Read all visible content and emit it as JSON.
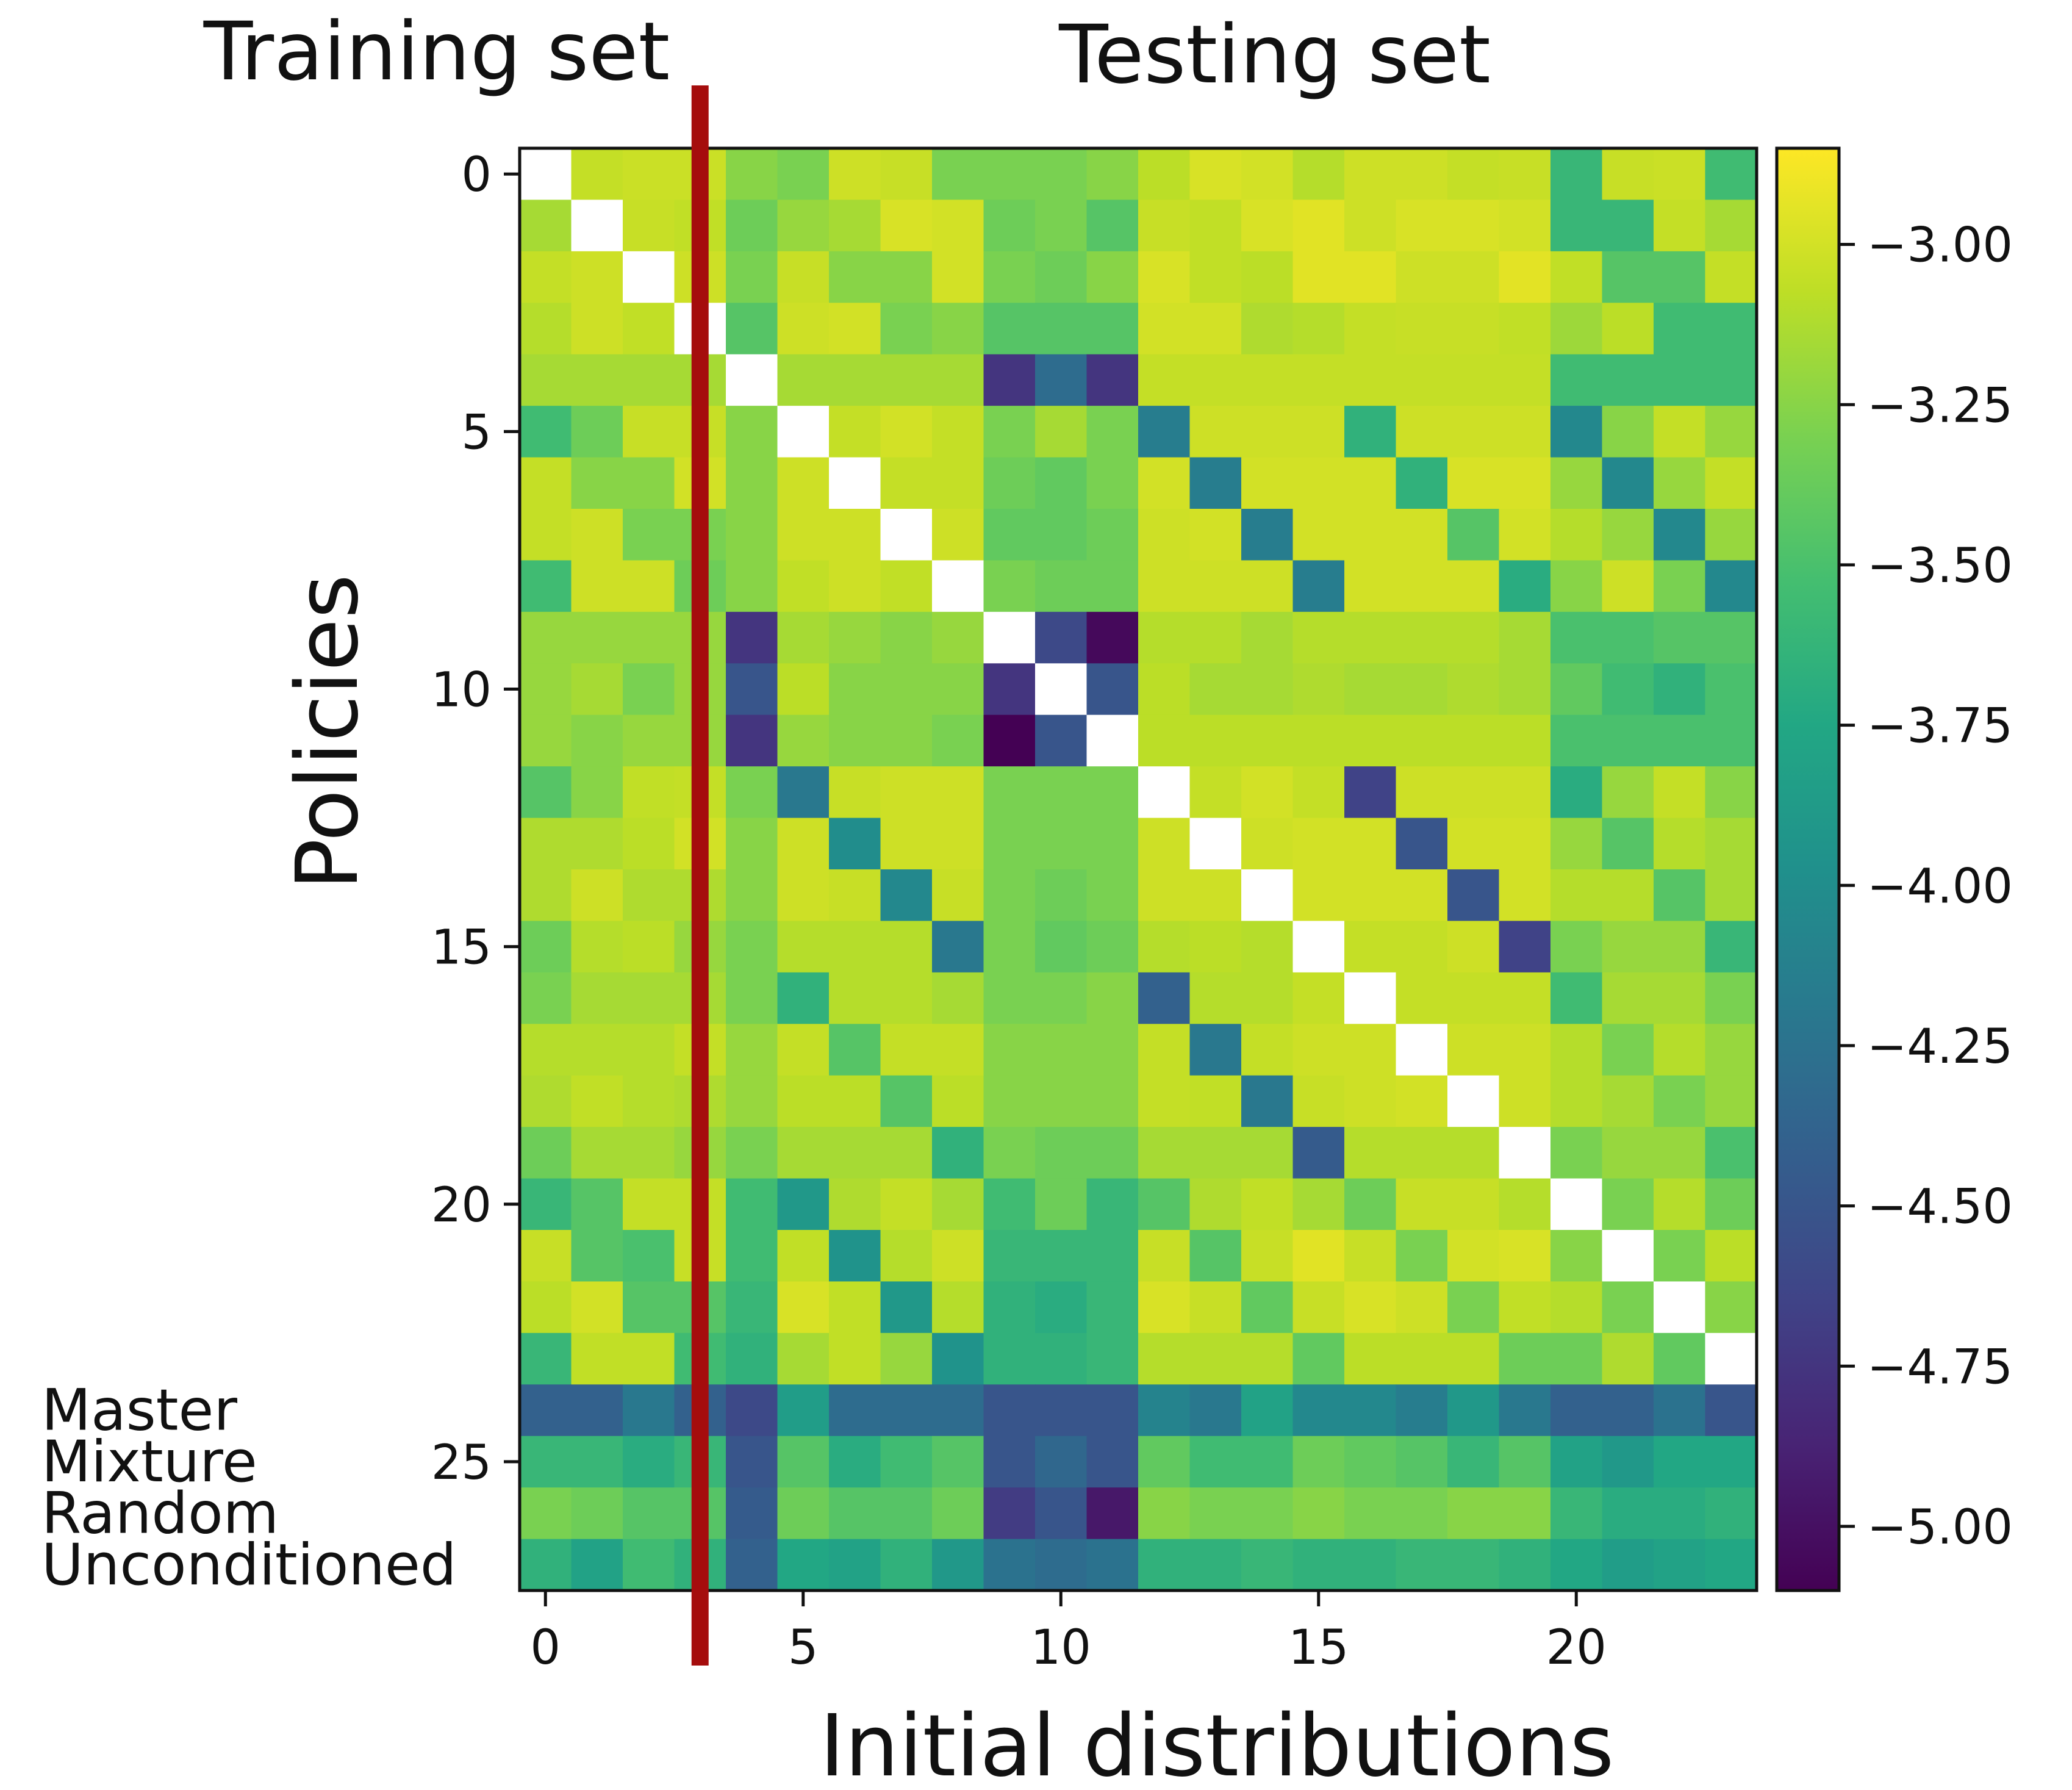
{
  "chart_data": {
    "type": "heatmap",
    "title": "",
    "xlabel": "Initial distributions",
    "ylabel": "Policies",
    "section_titles": {
      "left": "Training set",
      "right": "Testing set"
    },
    "split_after_column": 3,
    "x_tick_values": [
      0,
      5,
      10,
      15,
      20
    ],
    "x_tick_labels": [
      "0",
      "5",
      "10",
      "15",
      "20"
    ],
    "y_tick_values": [
      0,
      5,
      10,
      15,
      20,
      25
    ],
    "y_tick_labels": [
      "0",
      "5",
      "10",
      "15",
      "20",
      "25"
    ],
    "named_rows": [
      {
        "row": 24,
        "label": "Master"
      },
      {
        "row": 25,
        "label": "Mixture"
      },
      {
        "row": 26,
        "label": "Random"
      },
      {
        "row": 27,
        "label": "Unconditioned"
      }
    ],
    "n_rows": 28,
    "n_cols": 24,
    "colorbar": {
      "min": -5.1,
      "max": -2.85,
      "ticks": [
        -3.0,
        -3.25,
        -3.5,
        -3.75,
        -4.0,
        -4.25,
        -4.5,
        -4.75,
        -5.0
      ],
      "tick_labels": [
        "−3.00",
        "−3.25",
        "−3.50",
        "−3.75",
        "−4.00",
        "−4.25",
        "−4.50",
        "−4.75",
        "−5.00"
      ]
    },
    "colors": {
      "split_line": "#a50d0d",
      "missing": "#ffffff"
    },
    "values": [
      [
        null,
        -3.05,
        -3.03,
        -3.03,
        -3.25,
        -3.3,
        -3.02,
        -3.04,
        -3.3,
        -3.3,
        -3.3,
        -3.25,
        -3.08,
        -2.98,
        -3.0,
        -3.1,
        -3.02,
        -3.02,
        -3.05,
        -3.04,
        -3.6,
        -3.04,
        -3.03,
        -3.55
      ],
      [
        -3.15,
        null,
        -3.04,
        -3.06,
        -3.35,
        -3.2,
        -3.15,
        -2.98,
        -3.0,
        -3.35,
        -3.3,
        -3.45,
        -3.04,
        -3.06,
        -2.98,
        -2.95,
        -3.02,
        -2.98,
        -2.98,
        -3.0,
        -3.6,
        -3.6,
        -3.05,
        -3.15
      ],
      [
        -3.05,
        -3.02,
        null,
        -3.02,
        -3.3,
        -3.04,
        -3.25,
        -3.25,
        -3.0,
        -3.3,
        -3.35,
        -3.25,
        -2.98,
        -3.06,
        -3.08,
        -2.95,
        -2.95,
        -3.02,
        -3.02,
        -2.94,
        -3.06,
        -3.45,
        -3.45,
        -3.05
      ],
      [
        -3.1,
        -3.02,
        -3.06,
        null,
        -3.45,
        -3.02,
        -3.0,
        -3.3,
        -3.25,
        -3.45,
        -3.45,
        -3.45,
        -3.0,
        -3.0,
        -3.12,
        -3.1,
        -3.05,
        -3.04,
        -3.04,
        -3.06,
        -3.18,
        -3.08,
        -3.55,
        -3.55
      ],
      [
        -3.15,
        -3.15,
        -3.15,
        -3.15,
        null,
        -3.15,
        -3.15,
        -3.15,
        -3.15,
        -4.75,
        -4.3,
        -4.75,
        -3.05,
        -3.05,
        -3.05,
        -3.05,
        -3.05,
        -3.05,
        -3.05,
        -3.05,
        -3.55,
        -3.55,
        -3.55,
        -3.55
      ],
      [
        -3.55,
        -3.35,
        -3.04,
        -3.04,
        -3.25,
        null,
        -3.05,
        -3.0,
        -3.05,
        -3.3,
        -3.15,
        -3.3,
        -4.15,
        -3.02,
        -3.02,
        -3.02,
        -3.65,
        -3.02,
        -3.02,
        -3.02,
        -4.05,
        -3.25,
        -3.05,
        -3.2
      ],
      [
        -3.05,
        -3.25,
        -3.25,
        -3.0,
        -3.25,
        -3.02,
        null,
        -3.05,
        -3.05,
        -3.35,
        -3.4,
        -3.3,
        -3.0,
        -4.15,
        -3.0,
        -3.0,
        -3.0,
        -3.65,
        -2.98,
        -2.98,
        -3.2,
        -4.05,
        -3.2,
        -3.05
      ],
      [
        -3.05,
        -3.02,
        -3.3,
        -3.3,
        -3.25,
        -3.02,
        -3.02,
        null,
        -3.02,
        -3.4,
        -3.4,
        -3.35,
        -3.02,
        -3.0,
        -4.15,
        -3.0,
        -3.0,
        -3.0,
        -3.45,
        -3.0,
        -3.1,
        -3.2,
        -4.05,
        -3.2
      ],
      [
        -3.55,
        -3.02,
        -3.02,
        -3.35,
        -3.25,
        -3.06,
        -3.02,
        -3.06,
        null,
        -3.3,
        -3.35,
        -3.35,
        -3.02,
        -3.02,
        -3.02,
        -4.15,
        -3.0,
        -3.0,
        -3.0,
        -3.7,
        -3.25,
        -3.02,
        -3.3,
        -4.05
      ],
      [
        -3.2,
        -3.2,
        -3.2,
        -3.2,
        -4.75,
        -3.15,
        -3.2,
        -3.25,
        -3.2,
        null,
        -4.6,
        -5.05,
        -3.1,
        -3.1,
        -3.15,
        -3.1,
        -3.1,
        -3.1,
        -3.1,
        -3.15,
        -3.5,
        -3.5,
        -3.45,
        -3.45
      ],
      [
        -3.2,
        -3.15,
        -3.3,
        -3.2,
        -4.5,
        -3.08,
        -3.25,
        -3.25,
        -3.25,
        -4.75,
        null,
        -4.5,
        -3.08,
        -3.15,
        -3.15,
        -3.12,
        -3.15,
        -3.15,
        -3.12,
        -3.15,
        -3.4,
        -3.55,
        -3.65,
        -3.5
      ],
      [
        -3.2,
        -3.25,
        -3.2,
        -3.2,
        -4.75,
        -3.2,
        -3.25,
        -3.25,
        -3.3,
        -5.1,
        -4.5,
        null,
        -3.08,
        -3.08,
        -3.08,
        -3.08,
        -3.08,
        -3.08,
        -3.08,
        -3.08,
        -3.5,
        -3.5,
        -3.5,
        -3.5
      ],
      [
        -3.45,
        -3.25,
        -3.06,
        -3.05,
        -3.3,
        -4.2,
        -3.04,
        -3.02,
        -3.02,
        -3.3,
        -3.3,
        -3.3,
        null,
        -3.05,
        -3.0,
        -3.05,
        -4.65,
        -3.02,
        -3.02,
        -3.02,
        -3.7,
        -3.2,
        -3.05,
        -3.25
      ],
      [
        -3.12,
        -3.12,
        -3.08,
        -3.0,
        -3.25,
        -3.02,
        -4.0,
        -3.02,
        -3.02,
        -3.3,
        -3.3,
        -3.3,
        -3.02,
        null,
        -3.02,
        -3.0,
        -3.0,
        -4.5,
        -3.0,
        -3.0,
        -3.2,
        -3.45,
        -3.1,
        -3.15
      ],
      [
        -3.12,
        -3.02,
        -3.12,
        -3.12,
        -3.25,
        -3.02,
        -3.04,
        -4.05,
        -3.04,
        -3.3,
        -3.35,
        -3.3,
        -3.02,
        -3.02,
        null,
        -3.0,
        -3.0,
        -3.0,
        -4.5,
        -3.0,
        -3.1,
        -3.1,
        -3.45,
        -3.15
      ],
      [
        -3.35,
        -3.1,
        -3.08,
        -3.2,
        -3.3,
        -3.1,
        -3.1,
        -3.1,
        -4.2,
        -3.3,
        -3.4,
        -3.35,
        -3.1,
        -3.08,
        -3.1,
        null,
        -3.05,
        -3.05,
        -3.02,
        -4.65,
        -3.3,
        -3.2,
        -3.2,
        -3.6
      ],
      [
        -3.3,
        -3.15,
        -3.15,
        -3.15,
        -3.3,
        -3.65,
        -3.1,
        -3.1,
        -3.15,
        -3.3,
        -3.3,
        -3.25,
        -4.4,
        -3.1,
        -3.1,
        -3.05,
        null,
        -3.05,
        -3.05,
        -3.05,
        -3.55,
        -3.15,
        -3.15,
        -3.3
      ],
      [
        -3.1,
        -3.1,
        -3.1,
        -3.05,
        -3.2,
        -3.05,
        -3.45,
        -3.05,
        -3.05,
        -3.25,
        -3.25,
        -3.25,
        -3.05,
        -4.2,
        -3.05,
        -3.02,
        -3.02,
        null,
        -3.02,
        -3.02,
        -3.1,
        -3.3,
        -3.1,
        -3.2
      ],
      [
        -3.12,
        -3.06,
        -3.1,
        -3.12,
        -3.2,
        -3.08,
        -3.08,
        -3.45,
        -3.08,
        -3.25,
        -3.25,
        -3.25,
        -3.05,
        -3.06,
        -4.2,
        -3.04,
        -3.02,
        -3.0,
        null,
        -3.02,
        -3.1,
        -3.15,
        -3.3,
        -3.2
      ],
      [
        -3.35,
        -3.15,
        -3.15,
        -3.2,
        -3.3,
        -3.15,
        -3.15,
        -3.15,
        -3.65,
        -3.3,
        -3.35,
        -3.35,
        -3.15,
        -3.15,
        -3.15,
        -4.45,
        -3.1,
        -3.1,
        -3.1,
        null,
        -3.3,
        -3.2,
        -3.2,
        -3.5
      ],
      [
        -3.6,
        -3.45,
        -3.05,
        -3.05,
        -3.55,
        -3.9,
        -3.12,
        -3.05,
        -3.15,
        -3.55,
        -3.35,
        -3.6,
        -3.45,
        -3.12,
        -3.06,
        -3.15,
        -3.35,
        -3.04,
        -3.04,
        -3.1,
        null,
        -3.3,
        -3.1,
        -3.35
      ],
      [
        -3.04,
        -3.45,
        -3.5,
        -3.04,
        -3.55,
        -3.06,
        -3.95,
        -3.1,
        -3.02,
        -3.6,
        -3.6,
        -3.6,
        -3.04,
        -3.45,
        -3.04,
        -2.95,
        -3.04,
        -3.3,
        -3.0,
        -2.98,
        -3.25,
        null,
        -3.3,
        -3.08
      ],
      [
        -3.08,
        -3.0,
        -3.45,
        -3.45,
        -3.6,
        -2.98,
        -3.06,
        -3.9,
        -3.1,
        -3.65,
        -3.7,
        -3.6,
        -2.98,
        -3.04,
        -3.4,
        -3.04,
        -2.98,
        -3.02,
        -3.3,
        -3.06,
        -3.1,
        -3.3,
        null,
        -3.25
      ],
      [
        -3.6,
        -3.06,
        -3.06,
        -3.55,
        -3.65,
        -3.15,
        -3.06,
        -3.2,
        -3.95,
        -3.65,
        -3.65,
        -3.6,
        -3.1,
        -3.1,
        -3.1,
        -3.4,
        -3.08,
        -3.08,
        -3.08,
        -3.35,
        -3.35,
        -3.12,
        -3.4,
        null
      ],
      [
        -4.4,
        -4.4,
        -4.2,
        -4.4,
        -4.6,
        -3.85,
        -4.3,
        -4.3,
        -4.3,
        -4.5,
        -4.5,
        -4.5,
        -4.1,
        -4.2,
        -3.8,
        -4.05,
        -4.05,
        -4.15,
        -3.9,
        -4.2,
        -4.4,
        -4.4,
        -4.25,
        -4.5
      ],
      [
        -3.6,
        -3.6,
        -3.7,
        -3.6,
        -4.5,
        -3.45,
        -3.7,
        -3.55,
        -3.45,
        -4.5,
        -4.35,
        -4.5,
        -3.4,
        -3.55,
        -3.55,
        -3.35,
        -3.4,
        -3.45,
        -3.6,
        -3.45,
        -3.8,
        -3.9,
        -3.75,
        -3.75
      ],
      [
        -3.3,
        -3.35,
        -3.45,
        -3.45,
        -4.45,
        -3.35,
        -3.45,
        -3.45,
        -3.35,
        -4.7,
        -4.5,
        -4.95,
        -3.25,
        -3.3,
        -3.3,
        -3.25,
        -3.3,
        -3.3,
        -3.25,
        -3.25,
        -3.6,
        -3.7,
        -3.7,
        -3.65
      ],
      [
        -3.65,
        -3.8,
        -3.55,
        -3.65,
        -4.4,
        -3.75,
        -3.8,
        -3.65,
        -3.9,
        -4.25,
        -4.3,
        -4.25,
        -3.65,
        -3.65,
        -3.6,
        -3.65,
        -3.65,
        -3.6,
        -3.6,
        -3.65,
        -3.75,
        -3.85,
        -3.8,
        -3.75
      ]
    ]
  }
}
